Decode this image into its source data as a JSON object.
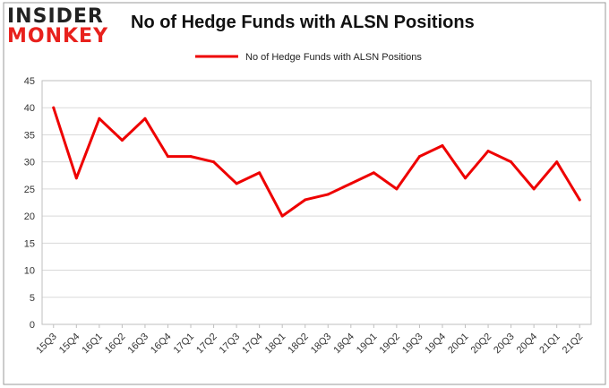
{
  "brand": {
    "logo_line1": "INSIDER",
    "logo_line2": "MONKEY"
  },
  "colors": {
    "series": "#ee0000",
    "logo_dark": "#222222",
    "logo_red": "#e8211d",
    "grid": "#d9d9d9",
    "frame": "#9a9a9a"
  },
  "chart_data": {
    "type": "line",
    "title": "No of Hedge Funds with ALSN Positions",
    "legend_position": "top-center",
    "grid": true,
    "ylim": [
      0,
      45
    ],
    "yticks": [
      0,
      5,
      10,
      15,
      20,
      25,
      30,
      35,
      40,
      45
    ],
    "categories": [
      "15Q3",
      "15Q4",
      "16Q1",
      "16Q2",
      "16Q3",
      "16Q4",
      "17Q1",
      "17Q2",
      "17Q3",
      "17Q4",
      "18Q1",
      "18Q2",
      "18Q3",
      "18Q4",
      "19Q1",
      "19Q2",
      "19Q3",
      "19Q4",
      "20Q1",
      "20Q2",
      "20Q3",
      "20Q4",
      "21Q1",
      "21Q2"
    ],
    "series": [
      {
        "name": "No of Hedge Funds with ALSN Positions",
        "values": [
          40,
          27,
          38,
          34,
          38,
          31,
          31,
          30,
          26,
          28,
          20,
          23,
          24,
          26,
          28,
          25,
          31,
          33,
          27,
          32,
          30,
          25,
          30,
          23
        ]
      }
    ]
  }
}
